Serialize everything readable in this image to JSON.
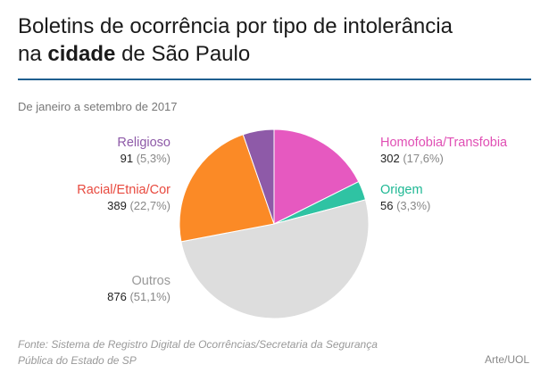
{
  "title_part1": "Boletins de ocorrência por tipo de intolerância",
  "title_part2": "na ",
  "title_bold": "cidade",
  "title_part3": " de São Paulo",
  "subtitle": "De janeiro a setembro de 2017",
  "source": "Fonte: Sistema de Registro Digital de Ocorrências/Secretaria da Segurança Pública do Estado de SP",
  "credit": "Arte/UOL",
  "chart_data": {
    "type": "pie",
    "slices": [
      {
        "name": "Homofobia/Transfobia",
        "value": 302,
        "value_label": "302",
        "pct_label": "(17,6%)",
        "color": "#e659c0"
      },
      {
        "name": "Origem",
        "value": 56,
        "value_label": "56",
        "pct_label": "(3,3%)",
        "color": "#2fc3a3"
      },
      {
        "name": "Outros",
        "value": 876,
        "value_label": "876",
        "pct_label": "(51,1%)",
        "color": "#dddddd"
      },
      {
        "name": "Racial/Etnia/Cor",
        "value": 389,
        "value_label": "389",
        "pct_label": "(22,7%)",
        "color": "#fb8a26"
      },
      {
        "name": "Religioso",
        "value": 91,
        "value_label": "91",
        "pct_label": "(5,3%)",
        "color": "#8e5aa8"
      }
    ],
    "label_colors": {
      "Homofobia/Transfobia": "#e04fb4",
      "Origem": "#1fb894",
      "Outros": "#999999",
      "Racial/Etnia/Cor": "#e84a3f",
      "Religioso": "#8e5aa8"
    }
  }
}
